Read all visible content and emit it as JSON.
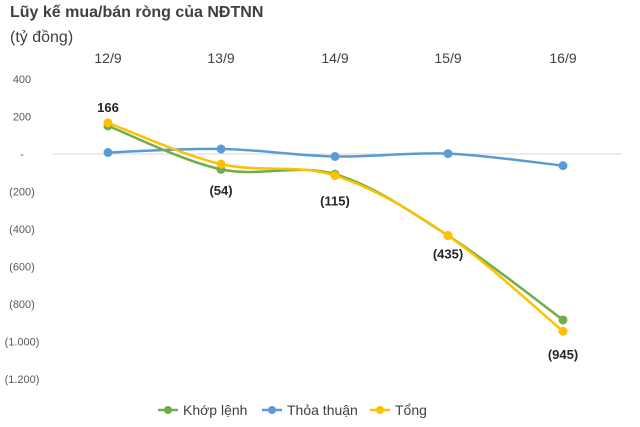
{
  "chart_data": {
    "type": "line",
    "title": "Lũy kế mua/bán ròng của NĐTNN",
    "subtitle": "(tỷ đồng)",
    "categories": [
      "12/9",
      "13/9",
      "14/9",
      "15/9",
      "16/9"
    ],
    "y_ticks": [
      "400",
      "200",
      "-",
      "(200)",
      "(400)",
      "(600)",
      "(800)",
      "(1.000)",
      "(1.200)"
    ],
    "ylim": [
      -1200,
      400
    ],
    "grid": false,
    "legend_position": "bottom",
    "series": [
      {
        "name": "Khớp lệnh",
        "color": "#70AD47",
        "values": [
          150,
          -82,
          -108,
          -435,
          -885
        ]
      },
      {
        "name": "Thỏa thuận",
        "color": "#5B9BD5",
        "values": [
          8,
          27,
          -13,
          2,
          -62
        ]
      },
      {
        "name": "Tổng",
        "color": "#FFC000",
        "values": [
          166,
          -54,
          -115,
          -435,
          -945
        ]
      }
    ],
    "data_labels": [
      "166",
      "(54)",
      "(115)",
      "(435)",
      "(945)"
    ]
  }
}
